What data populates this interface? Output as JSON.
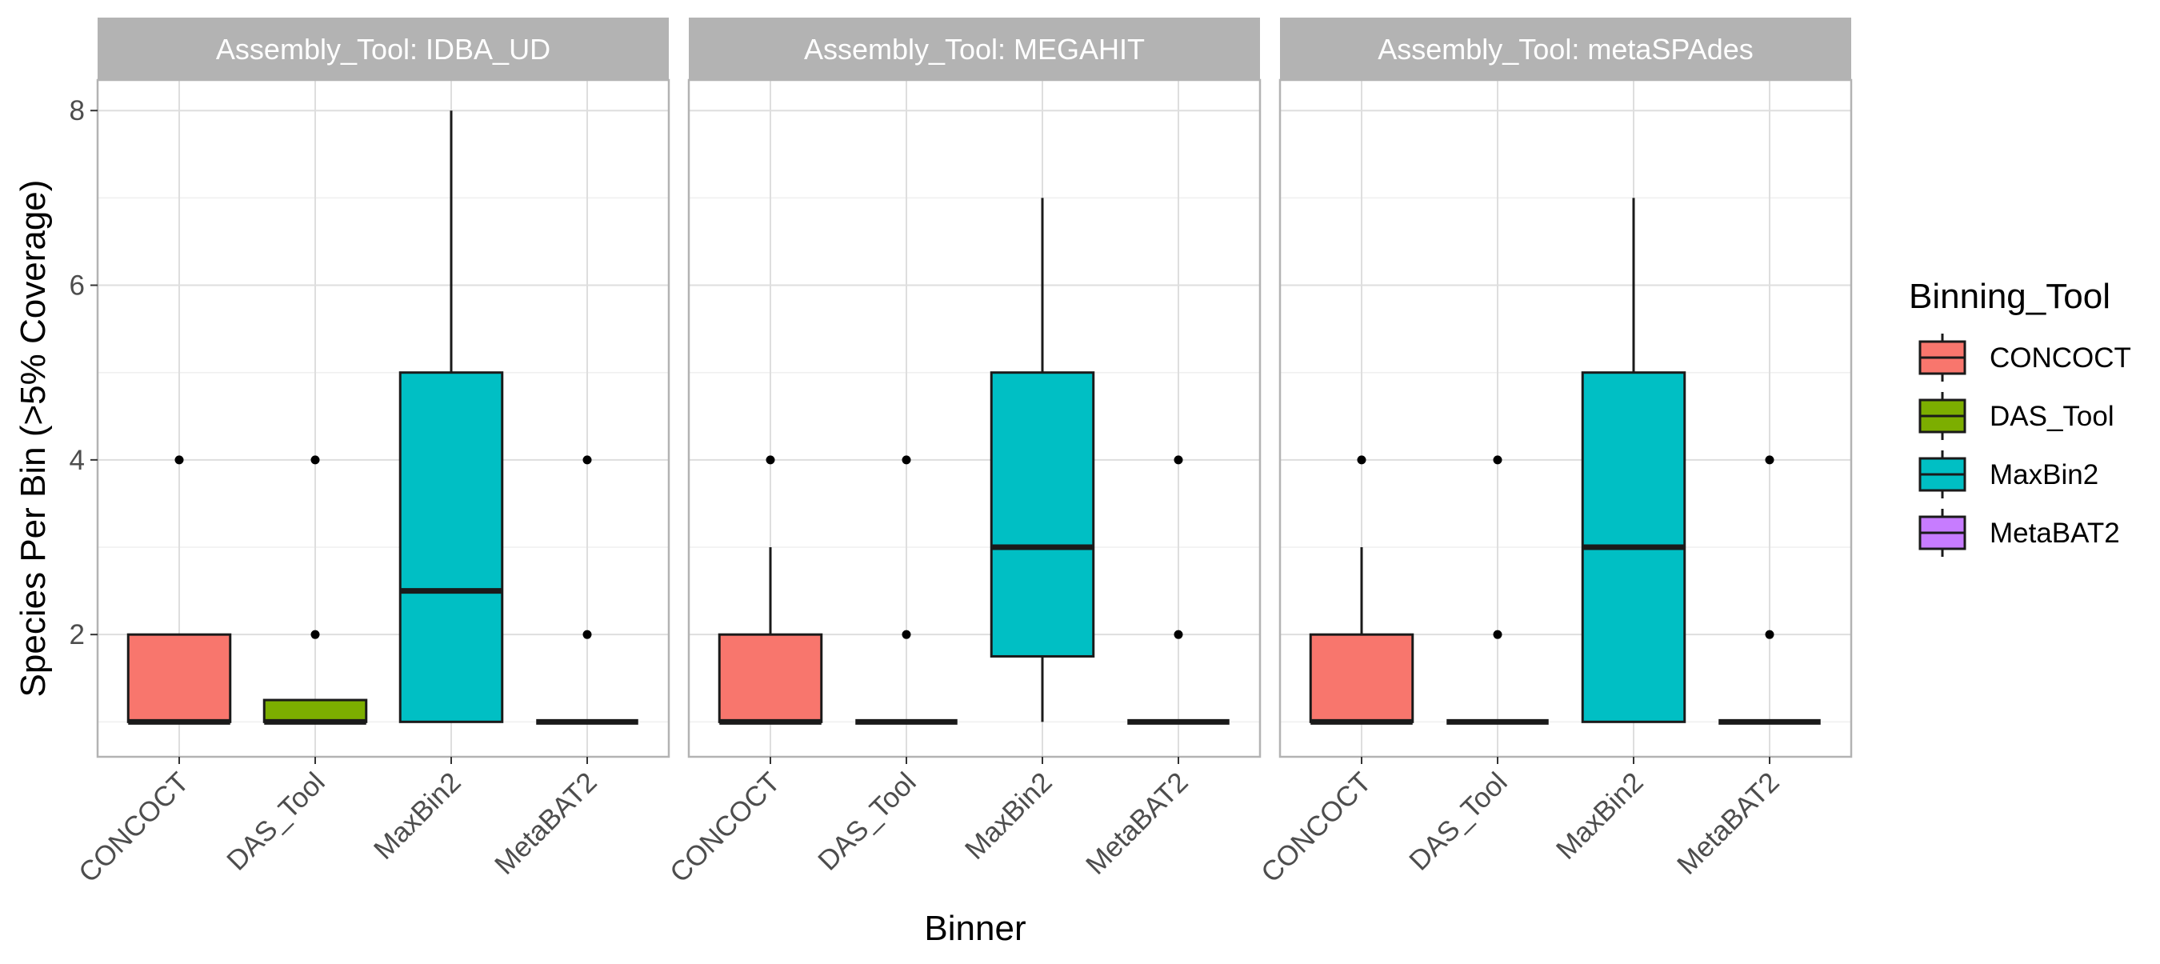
{
  "chart_data": {
    "type": "boxplot",
    "facet_label": "Assembly_Tool",
    "xlabel": "Binner",
    "ylabel": "Species Per Bin (>5% Coverage)",
    "ylim": [
      0.6,
      8.35
    ],
    "y_ticks": [
      2,
      4,
      6,
      8
    ],
    "grid": true,
    "legend": {
      "title": "Binning_Tool",
      "position": "right",
      "entries": [
        "CONCOCT",
        "DAS_Tool",
        "MaxBin2",
        "MetaBAT2"
      ]
    },
    "categories": [
      "CONCOCT",
      "DAS_Tool",
      "MaxBin2",
      "MetaBAT2"
    ],
    "colors": {
      "CONCOCT": "#F8766D",
      "DAS_Tool": "#7CAE00",
      "MaxBin2": "#00BFC4",
      "MetaBAT2": "#C77CFF"
    },
    "panels": [
      {
        "facet": "IDBA_UD",
        "strip_label": "Assembly_Tool: IDBA_UD",
        "boxes": [
          {
            "category": "CONCOCT",
            "lower": 1,
            "q1": 1,
            "median": 1,
            "q3": 2,
            "upper": 2,
            "outliers": [
              4
            ]
          },
          {
            "category": "DAS_Tool",
            "lower": 1,
            "q1": 1,
            "median": 1,
            "q3": 1.25,
            "upper": 1.25,
            "outliers": [
              2,
              4
            ]
          },
          {
            "category": "MaxBin2",
            "lower": 1,
            "q1": 1,
            "median": 2.5,
            "q3": 5,
            "upper": 8,
            "outliers": []
          },
          {
            "category": "MetaBAT2",
            "lower": 1,
            "q1": 1,
            "median": 1,
            "q3": 1,
            "upper": 1,
            "outliers": [
              2,
              4
            ]
          }
        ]
      },
      {
        "facet": "MEGAHIT",
        "strip_label": "Assembly_Tool: MEGAHIT",
        "boxes": [
          {
            "category": "CONCOCT",
            "lower": 1,
            "q1": 1,
            "median": 1,
            "q3": 2,
            "upper": 3,
            "outliers": [
              4
            ]
          },
          {
            "category": "DAS_Tool",
            "lower": 1,
            "q1": 1,
            "median": 1,
            "q3": 1,
            "upper": 1,
            "outliers": [
              2,
              4
            ]
          },
          {
            "category": "MaxBin2",
            "lower": 1,
            "q1": 1.75,
            "median": 3,
            "q3": 5,
            "upper": 7,
            "outliers": []
          },
          {
            "category": "MetaBAT2",
            "lower": 1,
            "q1": 1,
            "median": 1,
            "q3": 1,
            "upper": 1,
            "outliers": [
              2,
              4
            ]
          }
        ]
      },
      {
        "facet": "metaSPAdes",
        "strip_label": "Assembly_Tool: metaSPAdes",
        "boxes": [
          {
            "category": "CONCOCT",
            "lower": 1,
            "q1": 1,
            "median": 1,
            "q3": 2,
            "upper": 3,
            "outliers": [
              4
            ]
          },
          {
            "category": "DAS_Tool",
            "lower": 1,
            "q1": 1,
            "median": 1,
            "q3": 1,
            "upper": 1,
            "outliers": [
              2,
              4
            ]
          },
          {
            "category": "MaxBin2",
            "lower": 1,
            "q1": 1,
            "median": 3,
            "q3": 5,
            "upper": 7,
            "outliers": []
          },
          {
            "category": "MetaBAT2",
            "lower": 1,
            "q1": 1,
            "median": 1,
            "q3": 1,
            "upper": 1,
            "outliers": [
              2,
              4
            ]
          }
        ]
      }
    ]
  }
}
